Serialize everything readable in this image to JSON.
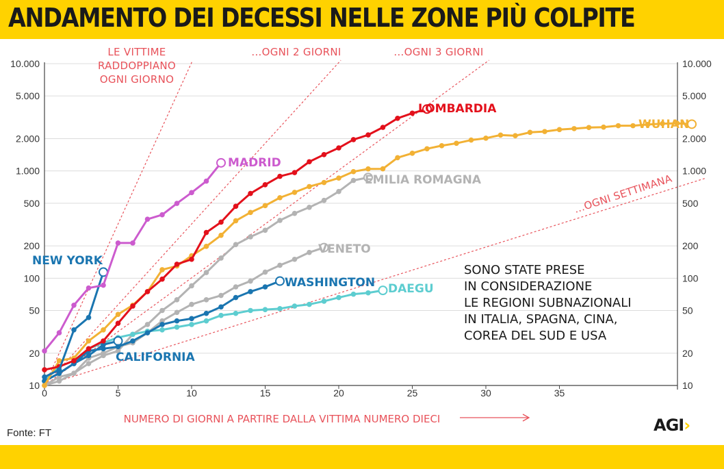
{
  "title": "ANDAMENTO DEI DECESSI NELLE ZONE PIÙ COLPITE",
  "source": "Fonte: FT",
  "logo": {
    "text": "AGI",
    "chevron": "›"
  },
  "chart_data": {
    "type": "line",
    "title": "ANDAMENTO DEI DECESSI NELLE ZONE PIÙ COLPITE",
    "xlabel": "NUMERO DI GIORNI A PARTIRE DALLA VITTIMA NUMERO DIECI",
    "ylabel": "",
    "yscale": "log",
    "xlim": [
      0,
      43
    ],
    "ylim": [
      10,
      10000
    ],
    "x_ticks": [
      0,
      5,
      10,
      15,
      20,
      25,
      30,
      35
    ],
    "y_ticks": [
      {
        "v": 10,
        "label": "10"
      },
      {
        "v": 20,
        "label": "20"
      },
      {
        "v": 50,
        "label": "50"
      },
      {
        "v": 100,
        "label": "100"
      },
      {
        "v": 200,
        "label": "200"
      },
      {
        "v": 500,
        "label": "500"
      },
      {
        "v": 1000,
        "label": "1.000"
      },
      {
        "v": 2000,
        "label": "2.000"
      },
      {
        "v": 5000,
        "label": "5.000"
      },
      {
        "v": 10000,
        "label": "10.000"
      }
    ],
    "grid": "horizontal",
    "reference_lines": [
      {
        "label_lines": [
          "LE VITTIME",
          "RADDOPPIANO",
          "OGNI GIORNO"
        ],
        "doubling_days": 1
      },
      {
        "label_lines": [
          "...OGNI 2 GIORNI"
        ],
        "doubling_days": 2
      },
      {
        "label_lines": [
          "...OGNI 3 GIORNI"
        ],
        "doubling_days": 3
      },
      {
        "label_lines": [
          "...OGNI SETTIMANA"
        ],
        "doubling_days": 7
      }
    ],
    "note": [
      "SONO STATE PRESE",
      "IN CONSIDERAZIONE",
      "LE REGIONI SUBNAZIONALI",
      "IN ITALIA, SPAGNA, CINA,",
      "COREA DEL SUD E USA"
    ],
    "series": [
      {
        "name": "LOMBARDIA",
        "color": "#e3101b",
        "values": [
          14,
          15,
          17,
          22,
          26,
          38,
          55,
          75,
          98,
          135,
          150,
          267,
          333,
          468,
          617,
          744,
          890,
          966,
          1218,
          1420,
          1640,
          1959,
          2168,
          2549,
          3095,
          3456,
          3776
        ]
      },
      {
        "name": "WUHAN",
        "color": "#f2b134",
        "values": [
          10,
          17,
          18,
          26,
          33,
          46,
          56,
          75,
          120,
          130,
          162,
          198,
          251,
          343,
          410,
          475,
          563,
          632,
          715,
          780,
          858,
          985,
          1044,
          1046,
          1330,
          1462,
          1610,
          1720,
          1810,
          1940,
          2020,
          2160,
          2130,
          2290,
          2330,
          2430,
          2480,
          2540,
          2560,
          2640,
          2640,
          2710,
          2760,
          2780,
          2730
        ]
      },
      {
        "name": "MADRID",
        "color": "#cc5bce",
        "values": [
          21,
          31,
          56,
          81,
          86,
          213,
          213,
          355,
          390,
          498,
          628,
          804,
          1190
        ]
      },
      {
        "name": "EMILIA ROMAGNA",
        "color": "#b3b3b3",
        "values": [
          10,
          12,
          13,
          16,
          19,
          21,
          30,
          37,
          50,
          63,
          85,
          113,
          154,
          206,
          243,
          280,
          346,
          402,
          458,
          531,
          643,
          816,
          869
        ]
      },
      {
        "name": "VENETO",
        "color": "#b3b3b3",
        "values": [
          10,
          11,
          13,
          18,
          20,
          23,
          25,
          31,
          40,
          48,
          57,
          63,
          69,
          83,
          94,
          114,
          132,
          150,
          174,
          193
        ]
      },
      {
        "name": "NEW YORK",
        "color": "#1a75b0",
        "values": [
          12,
          14,
          33,
          43,
          114
        ]
      },
      {
        "name": "WASHINGTON",
        "color": "#1a75b0",
        "values": [
          11,
          13,
          16,
          21,
          22,
          23,
          26,
          31,
          37,
          40,
          42,
          47,
          54,
          66,
          75,
          83,
          94
        ]
      },
      {
        "name": "CALIFORNIA",
        "color": "#1a75b0",
        "values": [
          11,
          13,
          16,
          19,
          24,
          26
        ]
      },
      {
        "name": "DAEGU",
        "color": "#5dcdd0",
        "values": [
          11,
          15,
          17,
          22,
          25,
          28,
          30,
          32,
          33,
          35,
          37,
          40,
          45,
          47,
          50,
          51,
          52,
          55,
          57,
          61,
          66,
          71,
          73,
          77
        ]
      }
    ]
  }
}
